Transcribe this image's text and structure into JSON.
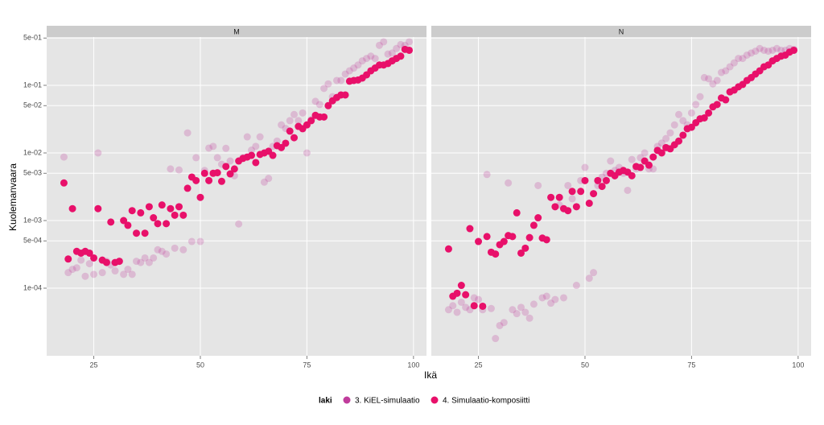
{
  "x_label": "Ikä",
  "y_label": "Kuolemanvaara",
  "legend_title": "laki",
  "chart_data": [
    {
      "type": "scatter",
      "title": "M",
      "log_y": true,
      "grid": true,
      "xlim": [
        13.95,
        103.05
      ],
      "xticks": [
        25,
        50,
        75,
        100
      ],
      "ylim": [
        1e-05,
        0.518
      ],
      "yticks": [
        {
          "value": 0.0001,
          "label": "1e-04"
        },
        {
          "value": 0.0005,
          "label": "5e-04"
        },
        {
          "value": 0.001,
          "label": "1e-03"
        },
        {
          "value": 0.005,
          "label": "5e-03"
        },
        {
          "value": 0.01,
          "label": "1e-02"
        },
        {
          "value": 0.05,
          "label": "5e-02"
        },
        {
          "value": 0.1,
          "label": "1e-01"
        },
        {
          "value": 0.5,
          "label": "5e-01"
        }
      ],
      "x": [
        18,
        19,
        20,
        21,
        22,
        23,
        24,
        25,
        26,
        27,
        28,
        29,
        30,
        31,
        32,
        33,
        34,
        35,
        36,
        37,
        38,
        39,
        40,
        41,
        42,
        43,
        44,
        45,
        46,
        47,
        48,
        49,
        50,
        51,
        52,
        53,
        54,
        55,
        56,
        57,
        58,
        59,
        60,
        61,
        62,
        63,
        64,
        65,
        66,
        67,
        68,
        69,
        70,
        71,
        72,
        73,
        74,
        75,
        76,
        77,
        78,
        79,
        80,
        81,
        82,
        83,
        84,
        85,
        86,
        87,
        88,
        89,
        90,
        91,
        92,
        93,
        94,
        95,
        96,
        97,
        98,
        99
      ],
      "series": [
        {
          "name": "3. KiEL-simulaatio",
          "color": "#c03c9c",
          "opacity": 0.25,
          "values": [
            0.0087,
            0.00017,
            0.00019,
            0.0002,
            0.00026,
            0.00015,
            0.00023,
            0.00016,
            0.01,
            0.00017,
            0.00025,
            0.00022,
            0.00018,
            0.00025,
            0.00016,
            0.00019,
            0.00016,
            0.00025,
            0.00024,
            0.00028,
            0.00024,
            0.00028,
            0.00037,
            0.00035,
            0.00032,
            0.0058,
            0.00039,
            0.0056,
            0.00037,
            0.0198,
            0.00049,
            0.0085,
            0.00049,
            0.0055,
            0.0118,
            0.0125,
            0.0085,
            0.0068,
            0.0117,
            0.0076,
            0.0046,
            0.00089,
            0.0085,
            0.0173,
            0.011,
            0.0125,
            0.0173,
            0.0037,
            0.0042,
            0.0125,
            0.015,
            0.026,
            0.023,
            0.03,
            0.037,
            0.03,
            0.039,
            0.01,
            0.031,
            0.058,
            0.052,
            0.09,
            0.105,
            0.068,
            0.118,
            0.118,
            0.147,
            0.164,
            0.18,
            0.2,
            0.23,
            0.25,
            0.27,
            0.25,
            0.39,
            0.44,
            0.29,
            0.3,
            0.35,
            0.4,
            0.39,
            0.44
          ]
        },
        {
          "name": "4. Simulaatio-komposiitti",
          "color": "#e8106a",
          "opacity": 1,
          "values": [
            0.0036,
            0.00027,
            0.0015,
            0.00035,
            0.00033,
            0.00035,
            0.00033,
            0.00028,
            0.0015,
            0.00026,
            0.00024,
            0.00095,
            0.00024,
            0.00025,
            0.001,
            0.00085,
            0.0014,
            0.00065,
            0.0013,
            0.00065,
            0.0016,
            0.0011,
            0.0009,
            0.0017,
            0.0009,
            0.0015,
            0.0012,
            0.0016,
            0.0012,
            0.003,
            0.0044,
            0.0039,
            0.0022,
            0.005,
            0.0039,
            0.005,
            0.0051,
            0.0038,
            0.0063,
            0.0049,
            0.0058,
            0.0076,
            0.0083,
            0.0087,
            0.0092,
            0.0072,
            0.0095,
            0.01,
            0.0106,
            0.0092,
            0.0128,
            0.012,
            0.0139,
            0.021,
            0.0168,
            0.0247,
            0.0228,
            0.026,
            0.03,
            0.036,
            0.034,
            0.034,
            0.05,
            0.059,
            0.066,
            0.072,
            0.072,
            0.115,
            0.118,
            0.12,
            0.128,
            0.143,
            0.164,
            0.18,
            0.2,
            0.2,
            0.21,
            0.23,
            0.25,
            0.27,
            0.34,
            0.33
          ]
        }
      ]
    },
    {
      "type": "scatter",
      "title": "N",
      "log_y": true,
      "grid": true,
      "xlim": [
        13.95,
        103.05
      ],
      "xticks": [
        25,
        50,
        75,
        100
      ],
      "ylim": [
        1e-05,
        0.518
      ],
      "yticks": [
        {
          "value": 0.0001,
          "label": "1e-04"
        },
        {
          "value": 0.0005,
          "label": "5e-04"
        },
        {
          "value": 0.001,
          "label": "1e-03"
        },
        {
          "value": 0.005,
          "label": "5e-03"
        },
        {
          "value": 0.01,
          "label": "1e-02"
        },
        {
          "value": 0.05,
          "label": "5e-02"
        },
        {
          "value": 0.1,
          "label": "1e-01"
        },
        {
          "value": 0.5,
          "label": "5e-01"
        }
      ],
      "x": [
        18,
        19,
        20,
        21,
        22,
        23,
        24,
        25,
        26,
        27,
        28,
        29,
        30,
        31,
        32,
        33,
        34,
        35,
        36,
        37,
        38,
        39,
        40,
        41,
        42,
        43,
        44,
        45,
        46,
        47,
        48,
        49,
        50,
        51,
        52,
        53,
        54,
        55,
        56,
        57,
        58,
        59,
        60,
        61,
        62,
        63,
        64,
        65,
        66,
        67,
        68,
        69,
        70,
        71,
        72,
        73,
        74,
        75,
        76,
        77,
        78,
        79,
        80,
        81,
        82,
        83,
        84,
        85,
        86,
        87,
        88,
        89,
        90,
        91,
        92,
        93,
        94,
        95,
        96,
        97,
        98,
        99
      ],
      "series": [
        {
          "name": "3. KiEL-simulaatio",
          "color": "#c03c9c",
          "opacity": 0.25,
          "values": [
            4.8e-05,
            5.5e-05,
            4.4e-05,
            6.2e-05,
            5.2e-05,
            4.8e-05,
            7.2e-05,
            6.8e-05,
            4.8e-05,
            0.0048,
            5e-05,
            1.8e-05,
            2.8e-05,
            3.1e-05,
            0.0036,
            4.8e-05,
            4.2e-05,
            5.2e-05,
            4.4e-05,
            3.6e-05,
            5.8e-05,
            0.0033,
            7.2e-05,
            7.6e-05,
            6e-05,
            6.8e-05,
            0.0017,
            7.2e-05,
            0.0033,
            0.0021,
            0.00011,
            0.0039,
            0.0061,
            0.00014,
            0.00017,
            0.0033,
            0.0044,
            0.005,
            0.0076,
            0.0055,
            0.0061,
            0.005,
            0.0028,
            0.008,
            0.0058,
            0.0085,
            0.01,
            0.0058,
            0.0058,
            0.0125,
            0.014,
            0.0163,
            0.0198,
            0.026,
            0.037,
            0.03,
            0.026,
            0.039,
            0.052,
            0.068,
            0.13,
            0.125,
            0.105,
            0.118,
            0.155,
            0.164,
            0.188,
            0.215,
            0.25,
            0.25,
            0.28,
            0.3,
            0.32,
            0.35,
            0.33,
            0.32,
            0.33,
            0.35,
            0.33,
            0.33,
            0.35,
            0.34
          ]
        },
        {
          "name": "4. Simulaatio-komposiitti",
          "color": "#e8106a",
          "opacity": 1,
          "values": [
            0.00038,
            7.6e-05,
            8.4e-05,
            0.00011,
            8e-05,
            0.00076,
            5.5e-05,
            0.00049,
            5.4e-05,
            0.00058,
            0.00034,
            0.00032,
            0.00044,
            0.00049,
            0.0006,
            0.00058,
            0.0013,
            0.00033,
            0.00039,
            0.00056,
            0.00085,
            0.0011,
            0.00055,
            0.00052,
            0.0022,
            0.0016,
            0.0022,
            0.0015,
            0.0014,
            0.0027,
            0.0016,
            0.0027,
            0.0039,
            0.0018,
            0.0025,
            0.0039,
            0.0032,
            0.0039,
            0.005,
            0.0046,
            0.0052,
            0.0055,
            0.0052,
            0.0046,
            0.0063,
            0.0061,
            0.0076,
            0.0066,
            0.0087,
            0.0109,
            0.01,
            0.012,
            0.0115,
            0.0132,
            0.015,
            0.0183,
            0.0228,
            0.024,
            0.028,
            0.032,
            0.033,
            0.039,
            0.048,
            0.052,
            0.065,
            0.061,
            0.08,
            0.085,
            0.095,
            0.103,
            0.118,
            0.13,
            0.147,
            0.164,
            0.188,
            0.2,
            0.23,
            0.25,
            0.27,
            0.28,
            0.31,
            0.33
          ]
        }
      ]
    }
  ]
}
